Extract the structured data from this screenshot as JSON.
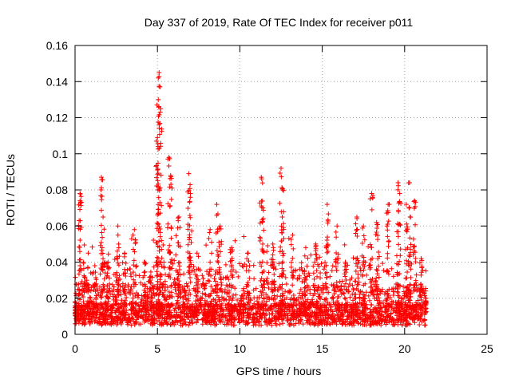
{
  "chart_data": {
    "type": "scatter",
    "title": "Day 337 of 2019, Rate Of TEC Index for receiver p011",
    "xlabel": "GPS time / hours",
    "ylabel": "ROTI / TECUs",
    "xlim": [
      0,
      25
    ],
    "ylim": [
      0,
      0.16
    ],
    "x_ticks": [
      "0",
      "5",
      "10",
      "15",
      "20",
      "25"
    ],
    "y_ticks": [
      "0",
      "0.02",
      "0.04",
      "0.06",
      "0.08",
      "0.1",
      "0.12",
      "0.14",
      "0.16"
    ],
    "grid": true,
    "marker": "+",
    "point_color": "#ff0000",
    "data_extent_hours": [
      0,
      21.3
    ],
    "x": [
      0.0,
      0.3,
      0.3,
      0.5,
      0.8,
      1.2,
      1.6,
      1.7,
      2.0,
      2.6,
      3.0,
      3.6,
      4.2,
      4.6,
      5.0,
      5.05,
      5.1,
      5.2,
      5.7,
      5.8,
      6.3,
      6.9,
      7.0,
      7.4,
      8.2,
      8.6,
      8.8,
      9.5,
      10.5,
      11.3,
      11.4,
      12.0,
      12.5,
      12.6,
      13.2,
      14.0,
      14.6,
      15.3,
      15.9,
      16.4,
      17.1,
      17.5,
      18.0,
      18.3,
      19.0,
      19.6,
      19.7,
      20.1,
      20.3,
      20.6,
      21.0,
      21.3
    ],
    "y": [
      0.018,
      0.074,
      0.078,
      0.04,
      0.045,
      0.038,
      0.087,
      0.065,
      0.04,
      0.06,
      0.045,
      0.058,
      0.04,
      0.032,
      0.109,
      0.13,
      0.145,
      0.125,
      0.098,
      0.088,
      0.065,
      0.089,
      0.078,
      0.045,
      0.058,
      0.072,
      0.06,
      0.048,
      0.045,
      0.087,
      0.07,
      0.05,
      0.092,
      0.08,
      0.055,
      0.048,
      0.05,
      0.072,
      0.06,
      0.04,
      0.065,
      0.06,
      0.078,
      0.062,
      0.072,
      0.084,
      0.078,
      0.072,
      0.084,
      0.074,
      0.042,
      0.02
    ]
  }
}
